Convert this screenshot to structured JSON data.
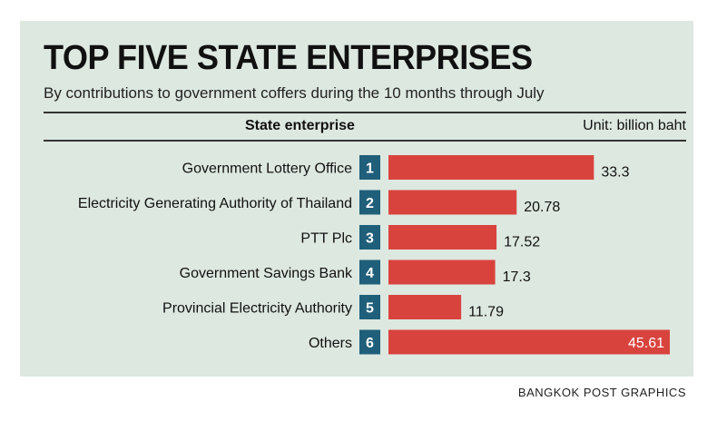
{
  "credit": "BANGKOK POST GRAPHICS",
  "colors": {
    "panel": "#dde8e0",
    "bar": "#d9433d",
    "rank_box": "#1f5f7a",
    "text": "#111111"
  },
  "chart_data": {
    "type": "bar",
    "orientation": "horizontal",
    "title": "TOP FIVE STATE ENTERPRISES",
    "subtitle": "By contributions to government coffers during the 10 months through July",
    "category_header": "State enterprise",
    "unit": "Unit: billion baht",
    "categories": [
      "Government Lottery Office",
      "Electricity Generating Authority of Thailand",
      "PTT Plc",
      "Government Savings Bank",
      "Provincial Electricity Authority",
      "Others"
    ],
    "ranks": [
      "1",
      "2",
      "3",
      "4",
      "5",
      "6"
    ],
    "values": [
      33.3,
      20.78,
      17.52,
      17.3,
      11.79,
      45.61
    ],
    "value_labels": [
      "33.3",
      "20.78",
      "17.52",
      "17.3",
      "11.79",
      "45.61"
    ],
    "xlim": [
      0,
      45.61
    ]
  }
}
